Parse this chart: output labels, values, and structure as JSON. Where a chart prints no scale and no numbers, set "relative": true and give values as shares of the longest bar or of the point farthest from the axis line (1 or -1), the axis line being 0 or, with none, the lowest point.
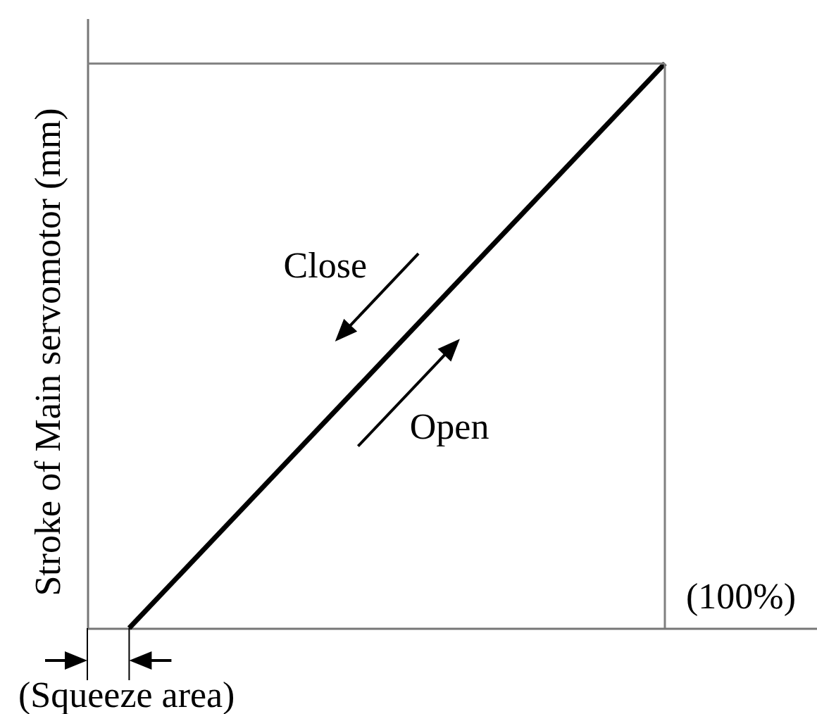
{
  "chart_data": {
    "type": "line",
    "relative": true,
    "ylabel": "Stroke of Main servomotor (mm)",
    "categories": [
      null,
      null
    ],
    "series": [
      {
        "color": "#000000",
        "values": [
          0,
          1
        ]
      }
    ],
    "annotations": [
      "Close",
      "Open",
      "(100%)",
      "(Squeeze area)"
    ],
    "marker": "none",
    "line_style": "solid"
  }
}
